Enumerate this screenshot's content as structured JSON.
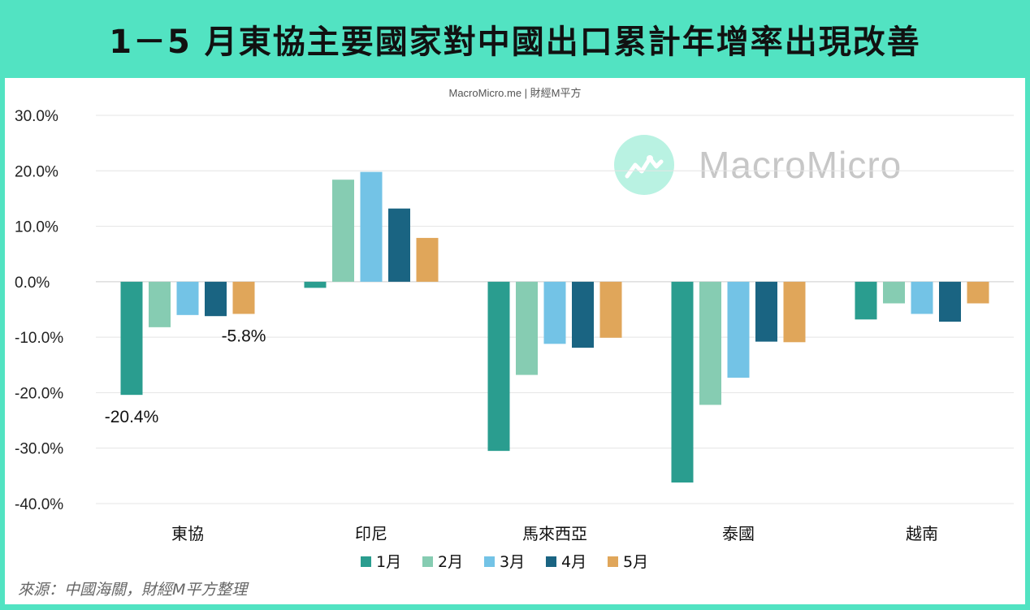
{
  "header": {
    "title": "1－5 月東協主要國家對中國出口累計年增率出現改善"
  },
  "source_top": "MacroMicro.me | 財經M平方",
  "watermark": {
    "text": "MacroMicro",
    "logo": "chart-line-icon"
  },
  "footnote": "來源：中國海關，財經M平方整理",
  "colors": {
    "header_bg": "#52e3c2",
    "s1": "#2a9d8f",
    "s2": "#86ccb2",
    "s3": "#73c3e6",
    "s4": "#1a6482",
    "s5": "#e0a65a"
  },
  "chart_data": {
    "type": "bar",
    "categories": [
      "東協",
      "印尼",
      "馬來西亞",
      "泰國",
      "越南"
    ],
    "series": [
      {
        "name": "1月",
        "values": [
          -20.4,
          -1.1,
          -30.5,
          -36.2,
          -6.8
        ]
      },
      {
        "name": "2月",
        "values": [
          -8.2,
          18.4,
          -16.8,
          -22.2,
          -3.9
        ]
      },
      {
        "name": "3月",
        "values": [
          -6.0,
          19.8,
          -11.2,
          -17.3,
          -5.8
        ]
      },
      {
        "name": "4月",
        "values": [
          -6.2,
          13.2,
          -11.9,
          -10.8,
          -7.2
        ]
      },
      {
        "name": "5月",
        "values": [
          -5.8,
          7.9,
          -10.1,
          -10.9,
          -3.9
        ]
      }
    ],
    "yticks": [
      "30.0%",
      "20.0%",
      "10.0%",
      "0.0%",
      "-10.0%",
      "-20.0%",
      "-30.0%",
      "-40.0%"
    ],
    "ylim": [
      -40,
      30
    ],
    "annotations": [
      {
        "text": "-20.4%",
        "category": 0,
        "series": 0
      },
      {
        "text": "-5.8%",
        "category": 0,
        "series": 4
      }
    ],
    "legend_position": "bottom",
    "grid": true
  }
}
